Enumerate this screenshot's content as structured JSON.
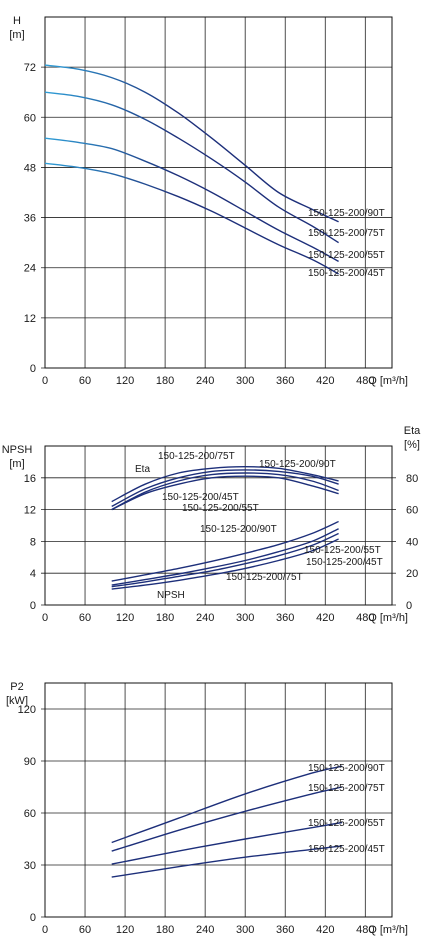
{
  "chart_data": [
    {
      "type": "line",
      "title": "",
      "ylabel": "H",
      "yunit": "[m]",
      "xlabel": "Q [m³/h]",
      "xlim": [
        0,
        520
      ],
      "ylim": [
        0,
        84
      ],
      "xticks": [
        0,
        60,
        120,
        180,
        240,
        300,
        360,
        420,
        480
      ],
      "yticks": [
        0,
        12,
        24,
        36,
        48,
        60,
        72
      ],
      "grid": true,
      "series": [
        {
          "name": "150-125-200/90T",
          "x": [
            0,
            50,
            100,
            150,
            200,
            250,
            300,
            350,
            400,
            440
          ],
          "y": [
            72.5,
            71.5,
            69.5,
            66.0,
            61.0,
            55.0,
            48.5,
            42.0,
            38.0,
            35.0
          ]
        },
        {
          "name": "150-125-200/75T",
          "x": [
            0,
            50,
            100,
            150,
            200,
            250,
            300,
            350,
            400,
            440
          ],
          "y": [
            66.0,
            65.0,
            63.0,
            59.5,
            55.0,
            50.0,
            44.5,
            38.5,
            34.0,
            30.0
          ]
        },
        {
          "name": "150-125-200/55T",
          "x": [
            0,
            50,
            100,
            150,
            200,
            250,
            300,
            350,
            400,
            440
          ],
          "y": [
            55.0,
            54.0,
            52.5,
            49.5,
            46.0,
            42.0,
            37.5,
            33.0,
            29.0,
            25.5
          ]
        },
        {
          "name": "150-125-200/45T",
          "x": [
            0,
            50,
            100,
            150,
            200,
            250,
            300,
            350,
            400,
            440
          ],
          "y": [
            49.0,
            48.0,
            46.5,
            44.0,
            41.0,
            37.5,
            33.5,
            29.5,
            26.0,
            22.5
          ]
        }
      ]
    },
    {
      "type": "line",
      "title": "",
      "ylabel": "NPSH",
      "yunit": "[m]",
      "y2label": "Eta",
      "y2unit": "[%]",
      "xlabel": "Q [m³/h]",
      "xlim": [
        0,
        520
      ],
      "ylim": [
        0,
        20
      ],
      "y2lim": [
        0,
        100
      ],
      "xticks": [
        0,
        60,
        120,
        180,
        240,
        300,
        360,
        420,
        480
      ],
      "yticks": [
        0,
        4,
        8,
        12,
        16
      ],
      "y2ticks": [
        0,
        20,
        40,
        60,
        80
      ],
      "grid": true,
      "eta_label": "Eta",
      "npsh_label": "NPSH",
      "series": [
        {
          "name": "150-125-200/75T",
          "group": "Eta",
          "x": [
            100,
            150,
            200,
            250,
            300,
            350,
            400,
            440
          ],
          "y": [
            65,
            76,
            83,
            86,
            87,
            86,
            82,
            78
          ]
        },
        {
          "name": "150-125-200/90T",
          "group": "Eta",
          "x": [
            100,
            150,
            200,
            250,
            300,
            350,
            400,
            440
          ],
          "y": [
            62,
            73,
            80,
            84,
            85,
            84,
            81,
            76
          ]
        },
        {
          "name": "150-125-200/45T",
          "group": "Eta",
          "x": [
            100,
            150,
            200,
            250,
            300,
            350,
            400,
            440
          ],
          "y": [
            60,
            71,
            78,
            82,
            83,
            82,
            78,
            72
          ]
        },
        {
          "name": "150-125-200/55T",
          "group": "Eta",
          "x": [
            100,
            150,
            200,
            250,
            300,
            350,
            400,
            440
          ],
          "y": [
            60,
            70,
            76,
            80,
            81,
            80,
            75,
            70
          ]
        },
        {
          "name": "150-125-200/90T",
          "group": "NPSH",
          "x": [
            100,
            150,
            200,
            250,
            300,
            350,
            400,
            440
          ],
          "y": [
            3.0,
            3.8,
            4.6,
            5.5,
            6.5,
            7.6,
            9.0,
            10.5
          ]
        },
        {
          "name": "150-125-200/55T",
          "group": "NPSH",
          "x": [
            100,
            150,
            200,
            250,
            300,
            350,
            400,
            440
          ],
          "y": [
            2.5,
            3.2,
            3.9,
            4.7,
            5.6,
            6.7,
            8.0,
            9.6
          ]
        },
        {
          "name": "150-125-200/75T",
          "group": "NPSH",
          "x": [
            100,
            150,
            200,
            250,
            300,
            350,
            400,
            440
          ],
          "y": [
            2.3,
            2.9,
            3.6,
            4.3,
            5.2,
            6.2,
            7.5,
            9.0
          ]
        },
        {
          "name": "150-125-200/45T",
          "group": "NPSH",
          "x": [
            100,
            150,
            200,
            250,
            300,
            350,
            400,
            440
          ],
          "y": [
            2.0,
            2.5,
            3.1,
            3.8,
            4.6,
            5.6,
            6.8,
            8.3
          ]
        }
      ]
    },
    {
      "type": "line",
      "title": "",
      "ylabel": "P2",
      "yunit": "[kW]",
      "xlabel": "Q [m³/h]",
      "xlim": [
        0,
        520
      ],
      "ylim": [
        0,
        135
      ],
      "xticks": [
        0,
        60,
        120,
        180,
        240,
        300,
        360,
        420,
        480
      ],
      "yticks": [
        0,
        30,
        60,
        90,
        120
      ],
      "grid": true,
      "series": [
        {
          "name": "150-125-200/90T",
          "x": [
            100,
            200,
            300,
            400,
            445
          ],
          "y": [
            43,
            57,
            71,
            83,
            87
          ]
        },
        {
          "name": "150-125-200/75T",
          "x": [
            100,
            200,
            300,
            400,
            445
          ],
          "y": [
            38,
            50,
            61,
            71,
            75
          ]
        },
        {
          "name": "150-125-200/55T",
          "x": [
            100,
            200,
            300,
            400,
            445
          ],
          "y": [
            30.5,
            38,
            45,
            51.5,
            54.5
          ]
        },
        {
          "name": "150-125-200/45T",
          "x": [
            100,
            200,
            300,
            400,
            445
          ],
          "y": [
            23,
            29,
            34.5,
            39,
            41
          ]
        }
      ]
    }
  ],
  "colors": {
    "series_dark": "#1d2f7a",
    "series_light": "#2f9fd8",
    "grid": "#222222"
  }
}
